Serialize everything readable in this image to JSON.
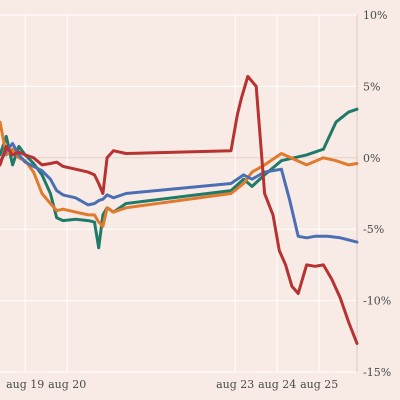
{
  "chart_data": {
    "type": "line",
    "title": "",
    "xlabel": "",
    "ylabel": "",
    "ylim": [
      -15,
      10
    ],
    "y_ticks": [
      10,
      5,
      0,
      -5,
      -10,
      -15
    ],
    "y_tick_labels": [
      "10%",
      "5%",
      "0%",
      "-5%",
      "-10%",
      "-15%"
    ],
    "x_ticks": [
      1.2,
      3.2,
      11.2,
      13.2,
      15.2
    ],
    "x_tick_labels": [
      "aug 19",
      "aug 20",
      "aug 23",
      "aug 24",
      "aug 25"
    ],
    "xlim": [
      0,
      17
    ],
    "grid": true,
    "legend": "none",
    "series": [
      {
        "color": "#2e8b57",
        "stroke": "#1f7a68",
        "x": [
          0,
          0.3,
          0.6,
          0.9,
          1.2,
          1.6,
          2.0,
          2.4,
          2.7,
          3.0,
          3.6,
          4.2,
          4.5,
          4.7,
          4.9,
          5.1,
          5.4,
          6.0,
          11.0,
          11.6,
          12.0,
          12.6,
          13.4,
          14.6,
          15.4,
          16.0,
          16.6,
          17.0
        ],
        "values": [
          0.2,
          1.5,
          -0.5,
          0.8,
          0.2,
          -0.4,
          -1.2,
          -2.5,
          -4.2,
          -4.4,
          -4.3,
          -4.4,
          -4.5,
          -6.3,
          -4.0,
          -3.5,
          -3.8,
          -3.2,
          -2.3,
          -1.5,
          -2.0,
          -1.2,
          -0.2,
          0.2,
          0.6,
          2.5,
          3.2,
          3.4
        ]
      },
      {
        "color": "#e07a2e",
        "stroke": "#e07a2e",
        "x": [
          0,
          0.3,
          0.6,
          0.9,
          1.2,
          1.6,
          2.0,
          2.4,
          2.7,
          3.0,
          3.6,
          4.2,
          4.5,
          4.7,
          4.9,
          5.1,
          5.4,
          6.0,
          11.0,
          11.6,
          12.0,
          12.6,
          13.4,
          14.6,
          15.4,
          16.0,
          16.6,
          17.0
        ],
        "values": [
          2.5,
          0.2,
          0.6,
          0.0,
          -0.2,
          -1.0,
          -2.5,
          -3.2,
          -3.7,
          -3.6,
          -3.8,
          -4.0,
          -4.0,
          -4.5,
          -4.8,
          -3.5,
          -3.8,
          -3.5,
          -2.5,
          -1.8,
          -1.0,
          -0.5,
          0.3,
          -0.5,
          0.0,
          -0.2,
          -0.5,
          -0.4
        ]
      },
      {
        "color": "#4a6fb5",
        "stroke": "#4a6fb5",
        "x": [
          0,
          0.3,
          0.6,
          0.9,
          1.2,
          1.6,
          2.0,
          2.4,
          2.7,
          3.0,
          3.6,
          4.2,
          4.5,
          4.7,
          4.9,
          5.1,
          5.4,
          6.0,
          11.0,
          11.6,
          12.0,
          12.6,
          13.4,
          13.8,
          14.2,
          14.6,
          15.0,
          15.6,
          16.2,
          17.0
        ],
        "values": [
          -0.3,
          0.5,
          1.0,
          0.2,
          -0.3,
          -0.6,
          -0.9,
          -1.5,
          -2.3,
          -2.6,
          -2.8,
          -3.3,
          -3.2,
          -3.0,
          -2.9,
          -2.6,
          -2.8,
          -2.5,
          -1.8,
          -1.2,
          -1.5,
          -1.0,
          -0.8,
          -3.0,
          -5.5,
          -5.6,
          -5.5,
          -5.5,
          -5.6,
          -5.9
        ]
      },
      {
        "color": "#b83232",
        "stroke": "#b83232",
        "x": [
          0,
          0.3,
          0.6,
          0.9,
          1.2,
          1.6,
          2.0,
          2.4,
          2.7,
          3.0,
          3.6,
          4.2,
          4.5,
          4.7,
          4.9,
          5.1,
          5.4,
          6.0,
          11.0,
          11.3,
          11.5,
          11.8,
          12.2,
          12.6,
          13.0,
          13.3,
          13.6,
          13.9,
          14.2,
          14.6,
          15.0,
          15.4,
          15.8,
          16.2,
          16.6,
          17.0
        ],
        "values": [
          -0.5,
          0.8,
          0.2,
          0.4,
          0.2,
          0.0,
          -0.5,
          -0.4,
          -0.3,
          -0.6,
          -0.8,
          -1.0,
          -1.2,
          -1.8,
          -2.5,
          0.0,
          0.5,
          0.3,
          0.5,
          3.0,
          4.2,
          5.7,
          5.0,
          -2.5,
          -4.0,
          -6.5,
          -7.5,
          -9.0,
          -9.5,
          -7.5,
          -7.6,
          -7.5,
          -8.5,
          -9.8,
          -11.5,
          -13.0
        ]
      }
    ]
  }
}
